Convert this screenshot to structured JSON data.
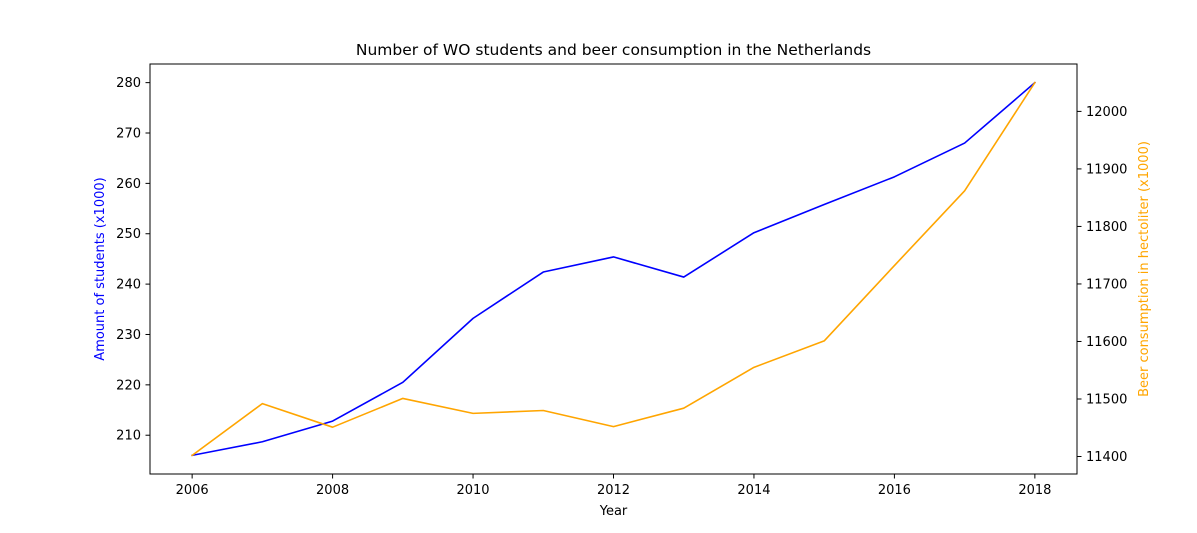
{
  "chart_data": {
    "type": "line",
    "title": "Number of WO students and beer consumption in the Netherlands",
    "xlabel": "Year",
    "ylabel_left": "Amount of students (x1000)",
    "ylabel_right": "Beer consumption in hectoliter (x1000)",
    "x": [
      2006,
      2007,
      2008,
      2009,
      2010,
      2011,
      2012,
      2013,
      2014,
      2015,
      2016,
      2017,
      2018
    ],
    "xlim": [
      2005.4,
      2018.6
    ],
    "x_ticks": [
      2006,
      2008,
      2010,
      2012,
      2014,
      2016,
      2018
    ],
    "grid": false,
    "legend": "none",
    "series": [
      {
        "key": "students",
        "axis": "left",
        "color": "#0000ff",
        "values": [
          206.0,
          208.7,
          212.8,
          220.5,
          233.2,
          242.4,
          245.4,
          241.4,
          250.2,
          255.8,
          261.3,
          268.0,
          280.0
        ],
        "ylim": [
          202.3,
          283.7
        ],
        "y_ticks": [
          210,
          220,
          230,
          240,
          250,
          260,
          270,
          280
        ]
      },
      {
        "key": "beer",
        "axis": "right",
        "color": "#ffa500",
        "values": [
          11402,
          11492,
          11451,
          11501,
          11475,
          11480,
          11452,
          11484,
          11555,
          11601,
          11732,
          11862,
          12050
        ],
        "ylim": [
          11369.6,
          12082.4
        ],
        "y_ticks": [
          11400,
          11500,
          11600,
          11700,
          11800,
          11900,
          12000
        ]
      }
    ]
  }
}
